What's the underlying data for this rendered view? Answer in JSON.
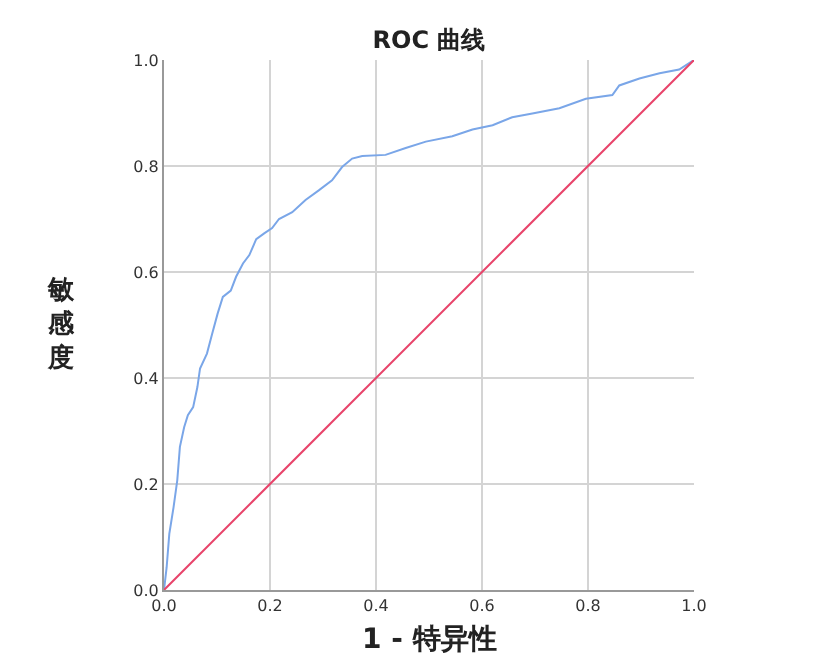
{
  "chart_data": {
    "type": "line",
    "title": "ROC 曲线",
    "xlabel": "1 - 特异性",
    "ylabel": "敏感度",
    "xlim": [
      0,
      1
    ],
    "ylim": [
      0,
      1
    ],
    "xticks": [
      {
        "value": 0,
        "label": "0.0"
      },
      0.2,
      0.4,
      0.6,
      0.8,
      {
        "value": 1,
        "label": "1.0"
      }
    ],
    "yticks": [
      {
        "value": 0,
        "label": "0.0"
      },
      0.2,
      0.4,
      0.6,
      0.8,
      {
        "value": 1,
        "label": "1.0"
      }
    ],
    "grid": true,
    "marker": "none",
    "series": [
      {
        "color": "#7aa6e8",
        "x": [
          0,
          0.005,
          0.01,
          0.018,
          0.025,
          0.03,
          0.038,
          0.045,
          0.055,
          0.063,
          0.068,
          0.081,
          0.091,
          0.101,
          0.111,
          0.126,
          0.136,
          0.149,
          0.161,
          0.174,
          0.189,
          0.204,
          0.217,
          0.242,
          0.267,
          0.292,
          0.317,
          0.336,
          0.355,
          0.374,
          0.418,
          0.456,
          0.494,
          0.544,
          0.582,
          0.62,
          0.657,
          0.695,
          0.746,
          0.796,
          0.846,
          0.859,
          0.897,
          0.935,
          0.972,
          1
        ],
        "values": [
          0,
          0.043,
          0.106,
          0.156,
          0.207,
          0.27,
          0.307,
          0.33,
          0.345,
          0.383,
          0.418,
          0.446,
          0.484,
          0.521,
          0.553,
          0.565,
          0.591,
          0.616,
          0.632,
          0.662,
          0.673,
          0.683,
          0.7,
          0.713,
          0.736,
          0.754,
          0.773,
          0.798,
          0.814,
          0.819,
          0.821,
          0.834,
          0.846,
          0.856,
          0.869,
          0.877,
          0.892,
          0.899,
          0.909,
          0.927,
          0.934,
          0.952,
          0.965,
          0.975,
          0.982,
          1
        ]
      },
      {
        "color": "#e8436a",
        "x": [
          0,
          1
        ],
        "values": [
          0,
          1
        ]
      }
    ]
  }
}
